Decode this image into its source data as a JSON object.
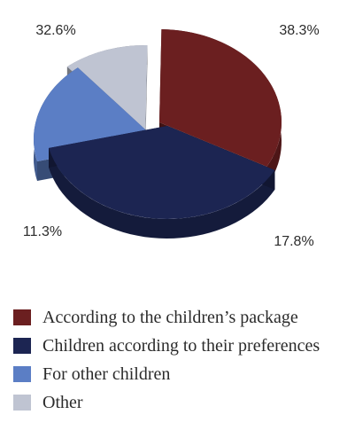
{
  "chart_data": {
    "type": "pie",
    "style": "3d exploded",
    "categories": [
      "According to the children’s package",
      "Children according to their preferences",
      "For other children",
      "Other"
    ],
    "values": [
      32.6,
      38.3,
      17.8,
      11.3
    ],
    "data_labels": [
      "32.6%",
      "38.3%",
      "17.8%",
      "11.3%"
    ],
    "colors": [
      "#6b1f20",
      "#1c2552",
      "#5b7ec5",
      "#bfc4d2"
    ],
    "legend_position": "bottom"
  },
  "legend": {
    "items": [
      {
        "label": "According to the children’s package",
        "color": "#6b1f20"
      },
      {
        "label": "Children according to their preferences",
        "color": "#1c2552"
      },
      {
        "label": "For other children",
        "color": "#5b7ec5"
      },
      {
        "label": "Other",
        "color": "#bfc4d2"
      }
    ]
  }
}
